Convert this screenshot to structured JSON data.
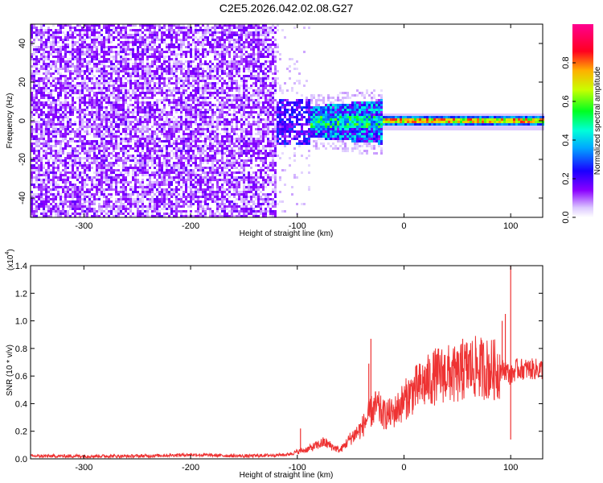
{
  "title": "C2E5.2026.042.02.08.G27",
  "chart_data": [
    {
      "type": "heatmap",
      "xlabel": "Height of straight line (km)",
      "ylabel": "Frequency (Hz)",
      "xlim": [
        -350,
        130
      ],
      "ylim": [
        -50,
        50
      ],
      "xticks": [
        -300,
        -200,
        -100,
        0,
        100
      ],
      "yticks": [
        -40,
        -20,
        0,
        20,
        40
      ],
      "colorbar": {
        "label": "Normalized spectral amplitude",
        "range": [
          0,
          1
        ],
        "ticks": [
          "0.0",
          "0.2",
          "0.4",
          "0.6",
          "0.8"
        ],
        "colormap": "rainbow (white-violet-blue-cyan-green-yellow-red-magenta)"
      },
      "regions": [
        {
          "x_range": [
            -350,
            -120
          ],
          "freq_range": [
            -50,
            50
          ],
          "amplitude": "scattered 0.05-0.25"
        },
        {
          "x_range": [
            -120,
            -20
          ],
          "freq_range": [
            -12,
            12
          ],
          "amplitude": "0.2-0.5 band near 0 Hz"
        },
        {
          "x_range": [
            -20,
            130
          ],
          "freq_range": [
            -3,
            3
          ],
          "amplitude": "0.5-0.9 narrow line at ~0.5 Hz"
        }
      ]
    },
    {
      "type": "line",
      "xlabel": "Height of straight line (km)",
      "ylabel": "SNR (10 * v/v)",
      "scale_label": "(x10",
      "scale_exp": "4",
      "xlim": [
        -350,
        130
      ],
      "ylim": [
        0,
        1.4
      ],
      "xticks": [
        -300,
        -200,
        -100,
        0,
        100
      ],
      "yticks": [
        "0.0",
        "0.2",
        "0.4",
        "0.6",
        "0.8",
        "1.0",
        "1.2",
        "1.4"
      ],
      "color": "#ee3333",
      "series": [
        {
          "x": [
            -350,
            -300,
            -250,
            -200,
            -150,
            -110,
            -90,
            -75,
            -60,
            -50,
            -40,
            -30,
            -25,
            -20,
            -10,
            0,
            10,
            20,
            30,
            40,
            50,
            60,
            70,
            80,
            90,
            95,
            100,
            105,
            110,
            120,
            130
          ],
          "y": [
            0.02,
            0.02,
            0.02,
            0.03,
            0.02,
            0.03,
            0.07,
            0.12,
            0.06,
            0.15,
            0.22,
            0.35,
            0.38,
            0.32,
            0.33,
            0.42,
            0.5,
            0.55,
            0.6,
            0.62,
            0.6,
            0.66,
            0.66,
            0.65,
            0.64,
            0.65,
            0.6,
            0.65,
            0.65,
            0.65,
            0.65
          ]
        }
      ],
      "spikes": [
        {
          "x": -97,
          "y": 0.22
        },
        {
          "x": -33,
          "y": 0.69
        },
        {
          "x": -31,
          "y": 0.87
        },
        {
          "x": 55,
          "y": 0.87
        },
        {
          "x": 92,
          "y": 1.0
        },
        {
          "x": 95,
          "y": 1.05
        },
        {
          "x": 100,
          "y": 1.4
        },
        {
          "x": 100,
          "y": 0.14
        }
      ]
    }
  ]
}
